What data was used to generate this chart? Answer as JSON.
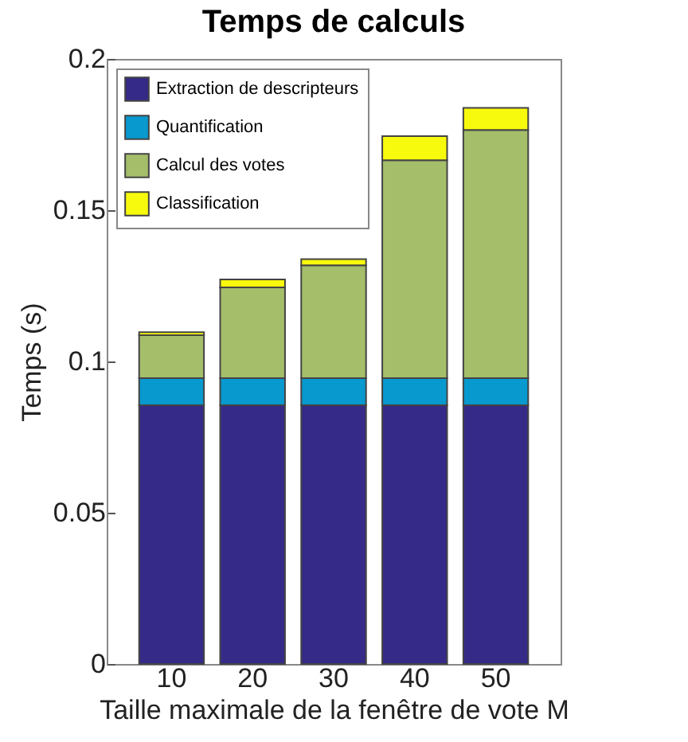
{
  "chart_data": {
    "type": "bar",
    "title": "Temps de calculs",
    "xlabel": "Taille maximale de la fenêtre de vote M",
    "ylabel": "Temps (s)",
    "categories": [
      "10",
      "20",
      "30",
      "40",
      "50"
    ],
    "stacked": true,
    "ylim": [
      0,
      0.2
    ],
    "yticks": [
      0,
      0.05,
      0.1,
      0.15,
      0.2
    ],
    "legend": "top left",
    "series": [
      {
        "name": "Extraction de descripteurs",
        "color": "#352a87",
        "values": [
          0.0855,
          0.0855,
          0.0855,
          0.0855,
          0.0855
        ]
      },
      {
        "name": "Quantification",
        "color": "#0899cf",
        "values": [
          0.009,
          0.009,
          0.009,
          0.009,
          0.009
        ]
      },
      {
        "name": "Calcul des votes",
        "color": "#a5be6a",
        "values": [
          0.0142,
          0.03,
          0.0373,
          0.072,
          0.082
        ]
      },
      {
        "name": "Classification",
        "color": "#f8fa0d",
        "values": [
          0.001,
          0.0026,
          0.002,
          0.008,
          0.0073
        ]
      }
    ]
  }
}
